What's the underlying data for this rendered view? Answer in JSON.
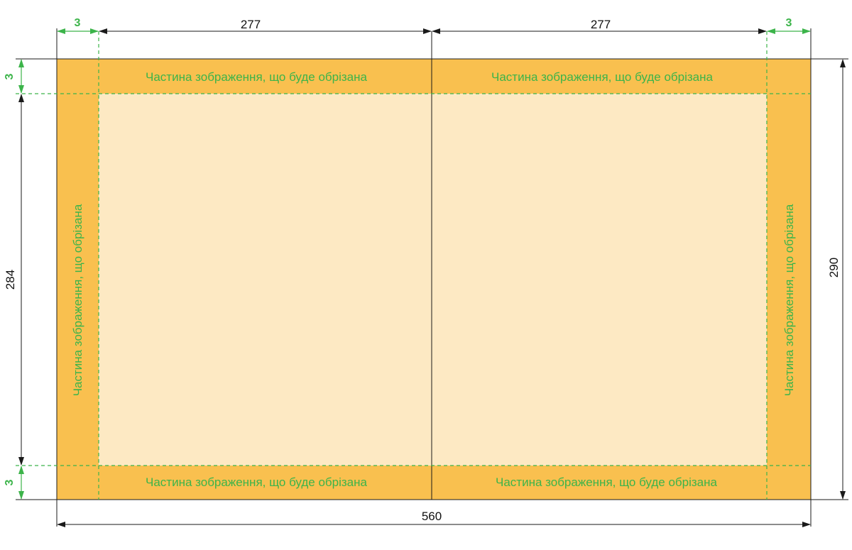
{
  "colors": {
    "bleed": "#f9c04f",
    "trim_area": "#fde9c3",
    "accent_green": "#3cb44a",
    "line": "#1a1a1a"
  },
  "dimensions": {
    "top_left_bleed": "3",
    "top_left_page": "277",
    "top_right_page": "277",
    "top_right_bleed": "3",
    "left_top_bleed": "3",
    "left_trim_height": "284",
    "left_bottom_bleed": "3",
    "right_total_height": "290",
    "bottom_total_width": "560"
  },
  "bleed_labels": {
    "top_left": "Частина зображення, що буде обрізана",
    "top_right": "Частина зображення, що буде обрізана",
    "bottom_left": "Частина зображення, що буде обрізана",
    "bottom_right": "Частина зображення, що буде обрізана",
    "left_vertical": "Частина зображення, що обрізана",
    "right_vertical": "Частина зображення, що обрізана"
  }
}
